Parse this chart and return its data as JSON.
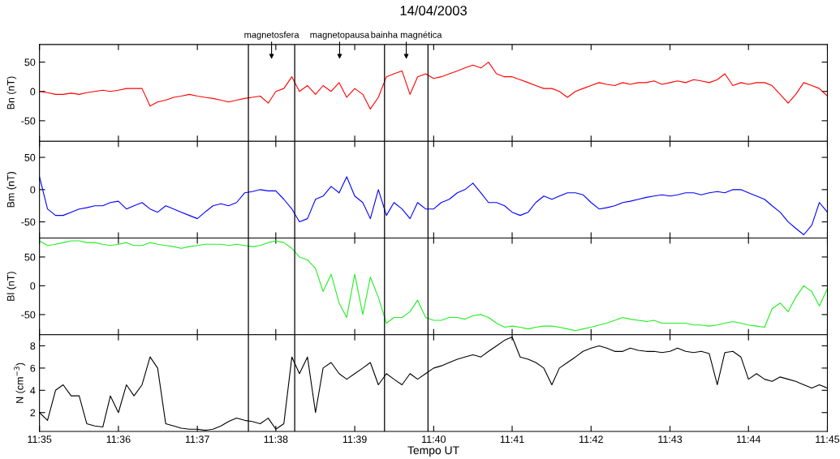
{
  "chart_data": [
    {
      "type": "line",
      "title": "14/04/2003",
      "ylabel": "Bn (nT)",
      "tick_labels": "y",
      "x": [
        11.5833,
        11.585,
        11.5867,
        11.5883,
        11.59,
        11.5917,
        11.5933,
        11.595,
        11.5967,
        11.5983,
        11.6,
        11.6017,
        11.6033,
        11.605,
        11.6067,
        11.6083,
        11.61,
        11.6117,
        11.6133,
        11.615,
        11.6167,
        11.6183,
        11.62,
        11.6217,
        11.6233,
        11.625,
        11.6267,
        11.6283,
        11.63,
        11.6317,
        11.6333,
        11.635,
        11.6367,
        11.6383,
        11.64,
        11.6417,
        11.6433,
        11.645,
        11.6467,
        11.6483,
        11.65,
        11.6517,
        11.6533,
        11.655,
        11.6567,
        11.6583,
        11.66,
        11.6617,
        11.6633,
        11.665,
        11.6667,
        11.6683,
        11.67,
        11.6717,
        11.6733,
        11.675,
        11.6767,
        11.6783,
        11.68,
        11.6817,
        11.6833,
        11.685,
        11.6867,
        11.6883,
        11.69,
        11.6917,
        11.6933,
        11.695,
        11.6967,
        11.6983,
        11.7,
        11.7017,
        11.7033,
        11.705,
        11.7067,
        11.7083,
        11.71,
        11.7117,
        11.7133,
        11.715,
        11.7167,
        11.7183,
        11.72,
        11.7217,
        11.7233,
        11.725,
        11.7267,
        11.7283,
        11.73,
        11.7317,
        11.7333,
        11.735,
        11.7367,
        11.7383,
        11.74,
        11.7417,
        11.7433,
        11.745,
        11.7467,
        11.7483,
        11.75
      ],
      "series": [
        {
          "color": "#ff0000",
          "values": [
            0,
            -2,
            -5,
            -5,
            -3,
            -5,
            -2,
            0,
            2,
            0,
            2,
            5,
            5,
            5,
            -25,
            -18,
            -15,
            -10,
            -8,
            -5,
            -8,
            -10,
            -12,
            -15,
            -18,
            -15,
            -12,
            -10,
            -8,
            -20,
            0,
            5,
            25,
            0,
            10,
            -5,
            10,
            0,
            15,
            -10,
            5,
            -5,
            -30,
            -10,
            25,
            30,
            35,
            -5,
            25,
            30,
            22,
            25,
            30,
            35,
            40,
            45,
            40,
            50,
            30,
            25,
            25,
            20,
            15,
            10,
            5,
            5,
            0,
            -10,
            0,
            5,
            10,
            15,
            12,
            10,
            15,
            12,
            15,
            15,
            18,
            12,
            15,
            18,
            15,
            20,
            18,
            15,
            20,
            30,
            10,
            15,
            12,
            15,
            15,
            10,
            -5,
            -20,
            -5,
            15,
            10,
            5,
            -8
          ]
        }
      ],
      "xlim": [
        11.5833,
        11.75
      ],
      "ylim": [
        -85,
        80
      ],
      "xticks": [
        {
          "value": 11.5833,
          "label": null
        },
        {
          "value": 11.6,
          "label": null
        },
        {
          "value": 11.6167,
          "label": null
        },
        {
          "value": 11.6333,
          "label": null
        },
        {
          "value": 11.65,
          "label": null
        },
        {
          "value": 11.6667,
          "label": null
        },
        {
          "value": 11.6833,
          "label": null
        },
        {
          "value": 11.7,
          "label": null
        },
        {
          "value": 11.7167,
          "label": null
        },
        {
          "value": 11.7333,
          "label": null
        },
        {
          "value": 11.75,
          "label": null
        }
      ],
      "yticks": [
        -50,
        0,
        50
      ],
      "ref_lines": [
        {
          "axis": "x",
          "value": 11.6275,
          "color": "#000000"
        },
        {
          "axis": "x",
          "value": 11.6373,
          "color": "#000000"
        },
        {
          "axis": "x",
          "value": 11.6563,
          "color": "#000000"
        },
        {
          "axis": "x",
          "value": 11.6655,
          "color": "#000000"
        }
      ],
      "annotations": [
        "magnetosfera",
        "magnetopausa",
        "bainha magnética"
      ]
    },
    {
      "type": "line",
      "ylabel": "Bm (nT)",
      "tick_labels": "y",
      "x": [
        11.5833,
        11.585,
        11.5867,
        11.5883,
        11.59,
        11.5917,
        11.5933,
        11.595,
        11.5967,
        11.5983,
        11.6,
        11.6017,
        11.6033,
        11.605,
        11.6067,
        11.6083,
        11.61,
        11.6117,
        11.6133,
        11.615,
        11.6167,
        11.6183,
        11.62,
        11.6217,
        11.6233,
        11.625,
        11.6267,
        11.6283,
        11.63,
        11.6317,
        11.6333,
        11.635,
        11.6367,
        11.6383,
        11.64,
        11.6417,
        11.6433,
        11.645,
        11.6467,
        11.6483,
        11.65,
        11.6517,
        11.6533,
        11.655,
        11.6567,
        11.6583,
        11.66,
        11.6617,
        11.6633,
        11.665,
        11.6667,
        11.6683,
        11.67,
        11.6717,
        11.6733,
        11.675,
        11.6767,
        11.6783,
        11.68,
        11.6817,
        11.6833,
        11.685,
        11.6867,
        11.6883,
        11.69,
        11.6917,
        11.6933,
        11.695,
        11.6967,
        11.6983,
        11.7,
        11.7017,
        11.7033,
        11.705,
        11.7067,
        11.7083,
        11.71,
        11.7117,
        11.7133,
        11.715,
        11.7167,
        11.7183,
        11.72,
        11.7217,
        11.7233,
        11.725,
        11.7267,
        11.7283,
        11.73,
        11.7317,
        11.7333,
        11.735,
        11.7367,
        11.7383,
        11.74,
        11.7417,
        11.7433,
        11.745,
        11.7467,
        11.7483,
        11.75
      ],
      "series": [
        {
          "color": "#0000ff",
          "values": [
            20,
            -30,
            -40,
            -40,
            -35,
            -30,
            -28,
            -25,
            -25,
            -20,
            -18,
            -30,
            -25,
            -20,
            -30,
            -35,
            -25,
            -30,
            -35,
            -40,
            -45,
            -35,
            -25,
            -22,
            -25,
            -20,
            -5,
            -3,
            0,
            -2,
            -2,
            -15,
            -30,
            -50,
            -45,
            -15,
            -10,
            5,
            -5,
            20,
            -10,
            -20,
            -45,
            0,
            -40,
            -20,
            -30,
            -45,
            -20,
            -30,
            -30,
            -20,
            -15,
            -5,
            0,
            10,
            -5,
            -20,
            -20,
            -25,
            -35,
            -40,
            -35,
            -20,
            -10,
            -15,
            -10,
            -5,
            -5,
            -8,
            -20,
            -30,
            -28,
            -25,
            -20,
            -18,
            -15,
            -12,
            -10,
            -8,
            -10,
            -8,
            -5,
            -5,
            -8,
            -5,
            -3,
            -5,
            0,
            0,
            -5,
            -10,
            -15,
            -25,
            -35,
            -50,
            -60,
            -70,
            -55,
            -20,
            -35
          ]
        }
      ],
      "xlim": [
        11.5833,
        11.75
      ],
      "ylim": [
        -75,
        75
      ],
      "xticks": [
        {
          "value": 11.5833,
          "label": null
        },
        {
          "value": 11.6,
          "label": null
        },
        {
          "value": 11.6167,
          "label": null
        },
        {
          "value": 11.6333,
          "label": null
        },
        {
          "value": 11.65,
          "label": null
        },
        {
          "value": 11.6667,
          "label": null
        },
        {
          "value": 11.6833,
          "label": null
        },
        {
          "value": 11.7,
          "label": null
        },
        {
          "value": 11.7167,
          "label": null
        },
        {
          "value": 11.7333,
          "label": null
        },
        {
          "value": 11.75,
          "label": null
        }
      ],
      "yticks": [
        -50,
        0,
        50
      ],
      "ref_lines": [
        {
          "axis": "x",
          "value": 11.6275,
          "color": "#000000"
        },
        {
          "axis": "x",
          "value": 11.6373,
          "color": "#000000"
        },
        {
          "axis": "x",
          "value": 11.6563,
          "color": "#000000"
        },
        {
          "axis": "x",
          "value": 11.6655,
          "color": "#000000"
        }
      ]
    },
    {
      "type": "line",
      "ylabel": "Bl (nT)",
      "tick_labels": "y",
      "x": [
        11.5833,
        11.585,
        11.5867,
        11.5883,
        11.59,
        11.5917,
        11.5933,
        11.595,
        11.5967,
        11.5983,
        11.6,
        11.6017,
        11.6033,
        11.605,
        11.6067,
        11.6083,
        11.61,
        11.6117,
        11.6133,
        11.615,
        11.6167,
        11.6183,
        11.62,
        11.6217,
        11.6233,
        11.625,
        11.6267,
        11.6283,
        11.63,
        11.6317,
        11.6333,
        11.635,
        11.6367,
        11.6383,
        11.64,
        11.6417,
        11.6433,
        11.645,
        11.6467,
        11.6483,
        11.65,
        11.6517,
        11.6533,
        11.655,
        11.6567,
        11.6583,
        11.66,
        11.6617,
        11.6633,
        11.665,
        11.6667,
        11.6683,
        11.67,
        11.6717,
        11.6733,
        11.675,
        11.6767,
        11.6783,
        11.68,
        11.6817,
        11.6833,
        11.685,
        11.6867,
        11.6883,
        11.69,
        11.6917,
        11.6933,
        11.695,
        11.6967,
        11.6983,
        11.7,
        11.7017,
        11.7033,
        11.705,
        11.7067,
        11.7083,
        11.71,
        11.7117,
        11.7133,
        11.715,
        11.7167,
        11.7183,
        11.72,
        11.7217,
        11.7233,
        11.725,
        11.7267,
        11.7283,
        11.73,
        11.7317,
        11.7333,
        11.735,
        11.7367,
        11.7383,
        11.74,
        11.7417,
        11.7433,
        11.745,
        11.7467,
        11.7483,
        11.75
      ],
      "series": [
        {
          "color": "#22ee22",
          "values": [
            78,
            70,
            72,
            75,
            78,
            78,
            75,
            75,
            72,
            70,
            72,
            75,
            70,
            70,
            75,
            72,
            70,
            68,
            65,
            68,
            70,
            72,
            72,
            72,
            70,
            72,
            70,
            68,
            70,
            75,
            78,
            75,
            65,
            50,
            45,
            30,
            -10,
            20,
            -30,
            -55,
            20,
            -50,
            15,
            -20,
            -65,
            -55,
            -55,
            -45,
            -25,
            -55,
            -60,
            -60,
            -55,
            -55,
            -58,
            -52,
            -50,
            -55,
            -65,
            -72,
            -70,
            -72,
            -75,
            -72,
            -70,
            -70,
            -72,
            -75,
            -78,
            -75,
            -72,
            -68,
            -65,
            -60,
            -55,
            -58,
            -60,
            -62,
            -60,
            -65,
            -65,
            -65,
            -65,
            -68,
            -68,
            -70,
            -68,
            -65,
            -62,
            -65,
            -68,
            -70,
            -72,
            -40,
            -30,
            -45,
            -20,
            0,
            -10,
            -35,
            -5
          ]
        }
      ],
      "xlim": [
        11.5833,
        11.75
      ],
      "ylim": [
        -85,
        83
      ],
      "xticks": [
        {
          "value": 11.5833,
          "label": null
        },
        {
          "value": 11.6,
          "label": null
        },
        {
          "value": 11.6167,
          "label": null
        },
        {
          "value": 11.6333,
          "label": null
        },
        {
          "value": 11.65,
          "label": null
        },
        {
          "value": 11.6667,
          "label": null
        },
        {
          "value": 11.6833,
          "label": null
        },
        {
          "value": 11.7,
          "label": null
        },
        {
          "value": 11.7167,
          "label": null
        },
        {
          "value": 11.7333,
          "label": null
        },
        {
          "value": 11.75,
          "label": null
        }
      ],
      "yticks": [
        -50,
        0,
        50
      ],
      "ref_lines": [
        {
          "axis": "x",
          "value": 11.6275,
          "color": "#000000"
        },
        {
          "axis": "x",
          "value": 11.6373,
          "color": "#000000"
        },
        {
          "axis": "x",
          "value": 11.6563,
          "color": "#000000"
        },
        {
          "axis": "x",
          "value": 11.6655,
          "color": "#000000"
        }
      ]
    },
    {
      "type": "line",
      "ylabel": "N (cm$^{−3}$)",
      "xlabel": "Tempo UT",
      "x": [
        11.5833,
        11.585,
        11.5867,
        11.5883,
        11.59,
        11.5917,
        11.5933,
        11.595,
        11.5967,
        11.5983,
        11.6,
        11.6017,
        11.6033,
        11.605,
        11.6067,
        11.6083,
        11.61,
        11.6117,
        11.6133,
        11.615,
        11.6167,
        11.6183,
        11.62,
        11.6217,
        11.6233,
        11.625,
        11.6267,
        11.6283,
        11.63,
        11.6317,
        11.6333,
        11.635,
        11.6367,
        11.6383,
        11.64,
        11.6417,
        11.6433,
        11.645,
        11.6467,
        11.6483,
        11.65,
        11.6517,
        11.6533,
        11.655,
        11.6567,
        11.6583,
        11.66,
        11.6617,
        11.6633,
        11.665,
        11.6667,
        11.6683,
        11.67,
        11.6717,
        11.6733,
        11.675,
        11.6767,
        11.6783,
        11.68,
        11.6817,
        11.6833,
        11.685,
        11.6867,
        11.6883,
        11.69,
        11.6917,
        11.6933,
        11.695,
        11.6967,
        11.6983,
        11.7,
        11.7017,
        11.7033,
        11.705,
        11.7067,
        11.7083,
        11.71,
        11.7117,
        11.7133,
        11.715,
        11.7167,
        11.7183,
        11.72,
        11.7217,
        11.7233,
        11.725,
        11.7267,
        11.7283,
        11.73,
        11.7317,
        11.7333,
        11.735,
        11.7367,
        11.7383,
        11.74,
        11.7417,
        11.7433,
        11.745,
        11.7467,
        11.7483,
        11.75
      ],
      "series": [
        {
          "color": "#000000",
          "values": [
            2,
            1.3,
            4,
            4.5,
            3.5,
            3.5,
            1,
            0.8,
            0.7,
            3.5,
            2,
            4.5,
            3.5,
            4.5,
            7,
            6,
            1,
            0.8,
            0.6,
            0.5,
            0.5,
            0.4,
            0.5,
            0.8,
            1.2,
            1.5,
            1.3,
            1.2,
            1,
            1.5,
            0.5,
            1,
            7,
            5.5,
            7,
            2,
            6,
            6.5,
            5.5,
            5,
            5.5,
            6,
            6.5,
            4.5,
            5.5,
            5,
            4.5,
            5.5,
            5,
            5.5,
            6,
            6.2,
            6.5,
            6.8,
            7,
            7.2,
            7,
            7.5,
            8,
            8.5,
            8.8,
            7,
            6.8,
            6.5,
            6,
            4.5,
            6,
            6.5,
            7,
            7.5,
            7.8,
            8,
            7.8,
            7.5,
            7.5,
            7.8,
            7.6,
            7.5,
            7.5,
            7.4,
            7.5,
            7.8,
            7.5,
            7.4,
            7.5,
            7.3,
            4.5,
            7.4,
            7.5,
            7,
            5,
            5.5,
            5,
            4.8,
            5.2,
            5,
            4.8,
            4.5,
            4.2,
            4.5,
            4.2
          ]
        }
      ],
      "xlim": [
        11.5833,
        11.75
      ],
      "ylim": [
        0.3,
        9
      ],
      "xticks": [
        {
          "value": 11.5833,
          "label": "11:35"
        },
        {
          "value": 11.6,
          "label": "11:36"
        },
        {
          "value": 11.6167,
          "label": "11:37"
        },
        {
          "value": 11.6333,
          "label": "11:38"
        },
        {
          "value": 11.65,
          "label": "11:39"
        },
        {
          "value": 11.6667,
          "label": "11:40"
        },
        {
          "value": 11.6833,
          "label": "11:41"
        },
        {
          "value": 11.7,
          "label": "11:42"
        },
        {
          "value": 11.7167,
          "label": "11:43"
        },
        {
          "value": 11.7333,
          "label": "11:44"
        },
        {
          "value": 11.75,
          "label": "11:45"
        }
      ],
      "yticks": [
        2,
        4,
        6,
        8
      ],
      "ref_lines": [
        {
          "axis": "x",
          "value": 11.6275,
          "color": "#000000"
        },
        {
          "axis": "x",
          "value": 11.6373,
          "color": "#000000"
        },
        {
          "axis": "x",
          "value": 11.6563,
          "color": "#000000"
        },
        {
          "axis": "x",
          "value": 11.6655,
          "color": "#000000"
        }
      ]
    }
  ]
}
